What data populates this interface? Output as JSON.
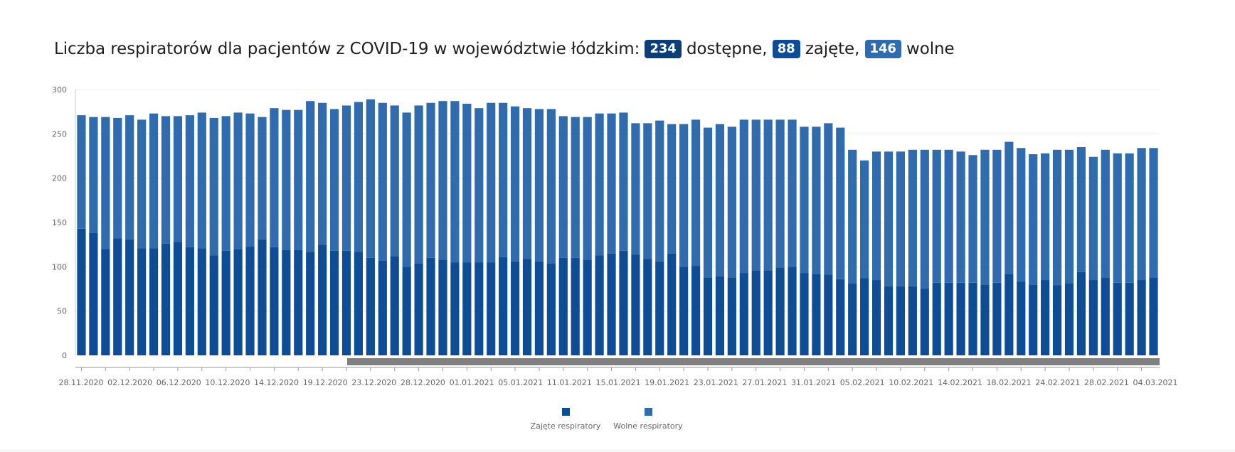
{
  "header": {
    "title_prefix": "Liczba respiratorów dla pacjentów z COVID-19 w województwie łódzkim:",
    "available_value": "234",
    "available_label": "dostępne,",
    "occupied_value": "88",
    "occupied_label": "zajęte,",
    "free_value": "146",
    "free_label": "wolne"
  },
  "colors": {
    "occupied": "#0e4c96",
    "free": "#2f6bad",
    "badge_available": "#0c3d77",
    "badge_occupied": "#0e4c96",
    "badge_free": "#2f6bad",
    "scrollbar": "#808080"
  },
  "chart_data": {
    "type": "bar",
    "stacked": true,
    "ylim": [
      0,
      300
    ],
    "yticks": [
      0,
      50,
      100,
      150,
      200,
      250,
      300
    ],
    "grid": true,
    "legend_position": "bottom-center",
    "x_tick_labels": [
      "28.11.2020",
      "02.12.2020",
      "06.12.2020",
      "10.12.2020",
      "14.12.2020",
      "19.12.2020",
      "23.12.2020",
      "28.12.2020",
      "01.01.2021",
      "05.01.2021",
      "11.01.2021",
      "15.01.2021",
      "19.01.2021",
      "23.01.2021",
      "27.01.2021",
      "31.01.2021",
      "05.02.2021",
      "10.02.2021",
      "14.02.2021",
      "18.02.2021",
      "24.02.2021",
      "28.02.2021",
      "04.03.2021"
    ],
    "series": [
      {
        "name": "Zajęte respiratory",
        "values": [
          143,
          138,
          120,
          132,
          131,
          121,
          121,
          126,
          128,
          122,
          121,
          113,
          118,
          120,
          123,
          131,
          122,
          119,
          119,
          117,
          125,
          118,
          118,
          117,
          110,
          107,
          112,
          100,
          104,
          110,
          108,
          105,
          105,
          105,
          105,
          111,
          106,
          109,
          106,
          104,
          110,
          110,
          108,
          113,
          115,
          118,
          114,
          109,
          106,
          115,
          100,
          101,
          88,
          89,
          88,
          93,
          96,
          96,
          99,
          100,
          93,
          92,
          91,
          86,
          81,
          87,
          85,
          78,
          78,
          78,
          75,
          82,
          82,
          82,
          82,
          80,
          82,
          92,
          83,
          80,
          85,
          79,
          81,
          94,
          85,
          88,
          82,
          82,
          85,
          88
        ]
      },
      {
        "name": "Wolne respiratory",
        "values": [
          128,
          131,
          149,
          136,
          140,
          145,
          152,
          144,
          142,
          149,
          153,
          155,
          152,
          154,
          150,
          138,
          157,
          158,
          158,
          170,
          160,
          160,
          164,
          169,
          179,
          178,
          170,
          174,
          178,
          175,
          179,
          182,
          179,
          174,
          180,
          174,
          175,
          170,
          172,
          174,
          160,
          159,
          161,
          160,
          158,
          156,
          148,
          153,
          159,
          146,
          161,
          165,
          169,
          172,
          170,
          173,
          170,
          170,
          167,
          166,
          165,
          166,
          171,
          171,
          151,
          133,
          145,
          152,
          152,
          154,
          157,
          150,
          150,
          148,
          144,
          152,
          150,
          149,
          151,
          147,
          143,
          153,
          151,
          141,
          139,
          144,
          146,
          146,
          149,
          146
        ]
      }
    ]
  }
}
